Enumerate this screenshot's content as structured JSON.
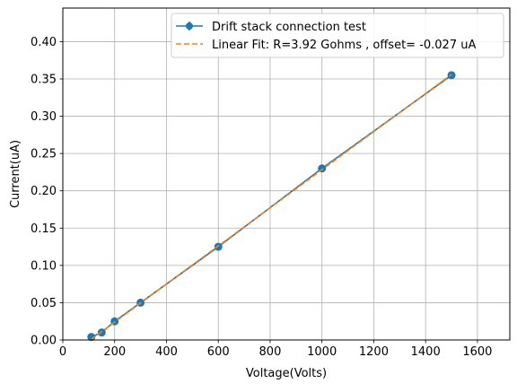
{
  "chart_data": {
    "type": "line",
    "xlabel": "Voltage(Volts)",
    "ylabel": "Current(uA)",
    "xlim": [
      0,
      1725
    ],
    "ylim": [
      0,
      0.445
    ],
    "xticks": [
      0,
      200,
      400,
      600,
      800,
      1000,
      1200,
      1400,
      1600
    ],
    "yticks": [
      0.0,
      0.05,
      0.1,
      0.15,
      0.2,
      0.25,
      0.3,
      0.35,
      0.4
    ],
    "xtick_labels": [
      "0",
      "200",
      "400",
      "600",
      "800",
      "1000",
      "1200",
      "1400",
      "1600"
    ],
    "ytick_labels": [
      "0.00",
      "0.05",
      "0.10",
      "0.15",
      "0.20",
      "0.25",
      "0.30",
      "0.35",
      "0.40"
    ],
    "grid": true,
    "legend_position": "top-right",
    "series": [
      {
        "name": "Drift stack connection test",
        "style": "solid-with-markers-and-errorbars",
        "color": "#1f77b4",
        "x": [
          110,
          150,
          200,
          300,
          600,
          1000,
          1500
        ],
        "y": [
          0.004,
          0.01,
          0.025,
          0.05,
          0.125,
          0.23,
          0.355
        ]
      },
      {
        "name": "Linear Fit: R=3.92 Gohms , offset= -0.027 uA",
        "style": "dashed",
        "color": "#ff7f0e",
        "x": [
          110,
          1500
        ],
        "y": [
          0.001,
          0.356
        ]
      }
    ]
  }
}
